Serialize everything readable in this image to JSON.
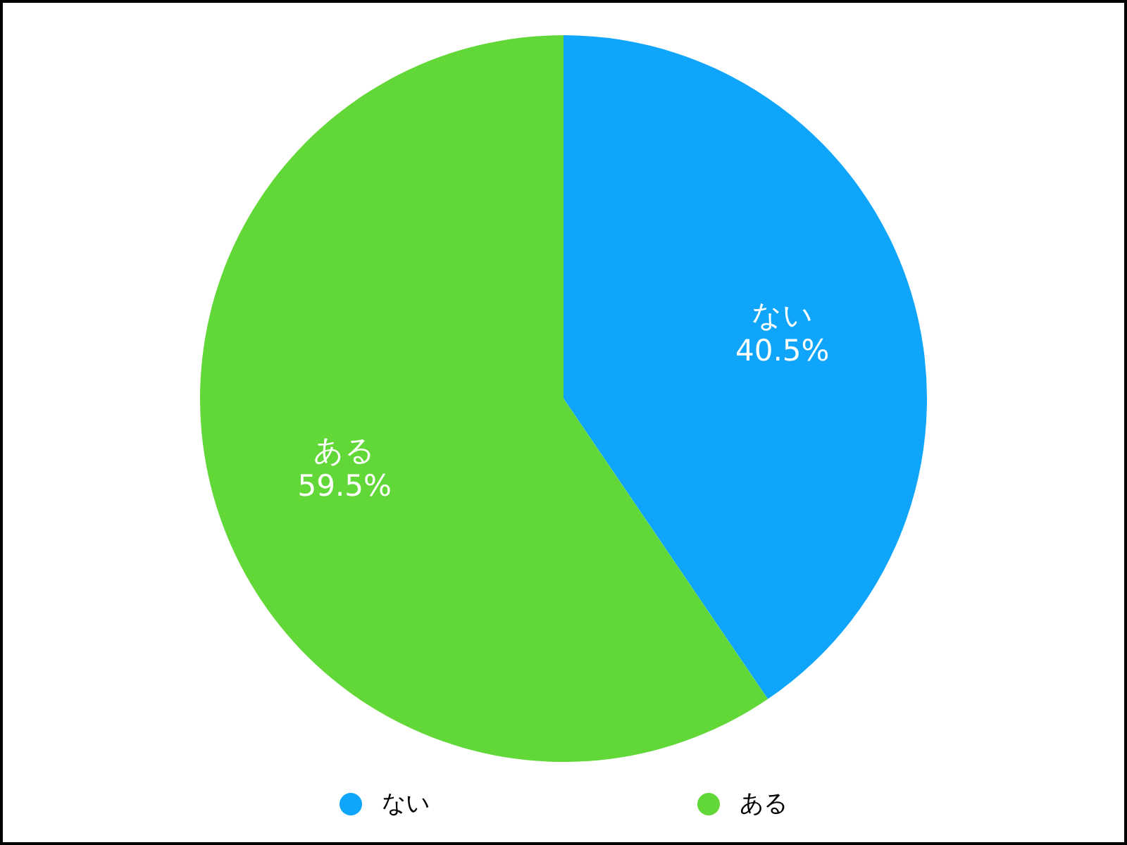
{
  "chart_data": {
    "type": "pie",
    "categories": [
      "ない",
      "ある"
    ],
    "values": [
      40.5,
      59.5
    ],
    "value_labels": [
      "40.5%",
      "59.5%"
    ],
    "colors": [
      "#0ea5fb",
      "#62d838"
    ],
    "legend": "bottom"
  }
}
